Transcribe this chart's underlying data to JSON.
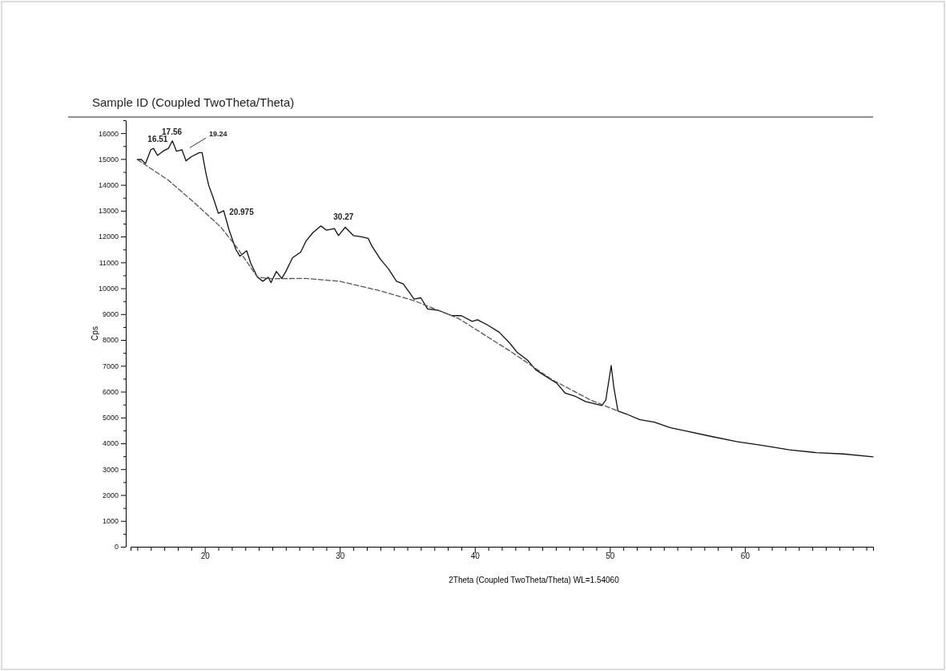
{
  "chart_data": {
    "type": "line",
    "title": "Sample ID (Coupled TwoTheta/Theta)",
    "xlabel": "2Theta (Coupled TwoTheta/Theta) WL=1.54060",
    "ylabel": "Cps",
    "xlim": [
      14.5,
      69.5
    ],
    "ylim": [
      0,
      16500
    ],
    "xticks": [
      {
        "value": 15,
        "label": null
      },
      {
        "value": 16,
        "label": null
      },
      {
        "value": 17,
        "label": null
      },
      {
        "value": 18,
        "label": null
      },
      {
        "value": 19,
        "label": null
      },
      20,
      {
        "value": 21,
        "label": null
      },
      {
        "value": 22,
        "label": null
      },
      {
        "value": 23,
        "label": null
      },
      {
        "value": 24,
        "label": null
      },
      {
        "value": 25,
        "label": null
      },
      {
        "value": 26,
        "label": null
      },
      {
        "value": 27,
        "label": null
      },
      {
        "value": 28,
        "label": null
      },
      {
        "value": 29,
        "label": null
      },
      30,
      {
        "value": 31,
        "label": null
      },
      {
        "value": 32,
        "label": null
      },
      {
        "value": 33,
        "label": null
      },
      {
        "value": 34,
        "label": null
      },
      {
        "value": 35,
        "label": null
      },
      {
        "value": 36,
        "label": null
      },
      {
        "value": 37,
        "label": null
      },
      {
        "value": 38,
        "label": null
      },
      {
        "value": 39,
        "label": null
      },
      40,
      {
        "value": 41,
        "label": null
      },
      {
        "value": 42,
        "label": null
      },
      {
        "value": 43,
        "label": null
      },
      {
        "value": 44,
        "label": null
      },
      {
        "value": 45,
        "label": null
      },
      {
        "value": 46,
        "label": null
      },
      {
        "value": 47,
        "label": null
      },
      {
        "value": 48,
        "label": null
      },
      {
        "value": 49,
        "label": null
      },
      50,
      {
        "value": 51,
        "label": null
      },
      {
        "value": 52,
        "label": null
      },
      {
        "value": 53,
        "label": null
      },
      {
        "value": 54,
        "label": null
      },
      {
        "value": 55,
        "label": null
      },
      {
        "value": 56,
        "label": null
      },
      {
        "value": 57,
        "label": null
      },
      {
        "value": 58,
        "label": null
      },
      {
        "value": 59,
        "label": null
      },
      60,
      {
        "value": 61,
        "label": null
      },
      {
        "value": 62,
        "label": null
      },
      {
        "value": 63,
        "label": null
      },
      {
        "value": 64,
        "label": null
      },
      {
        "value": 65,
        "label": null
      },
      {
        "value": 66,
        "label": null
      },
      {
        "value": 67,
        "label": null
      },
      {
        "value": 68,
        "label": null
      },
      {
        "value": 69,
        "label": null
      }
    ],
    "yticks": [
      0,
      {
        "value": 500,
        "label": null
      },
      1000,
      {
        "value": 1500,
        "label": null
      },
      2000,
      {
        "value": 2500,
        "label": null
      },
      3000,
      {
        "value": 3500,
        "label": null
      },
      4000,
      {
        "value": 4500,
        "label": null
      },
      5000,
      {
        "value": 5500,
        "label": null
      },
      6000,
      {
        "value": 6500,
        "label": null
      },
      7000,
      {
        "value": 7500,
        "label": null
      },
      8000,
      {
        "value": 8500,
        "label": null
      },
      9000,
      {
        "value": 9500,
        "label": null
      },
      10000,
      {
        "value": 10500,
        "label": null
      },
      11000,
      {
        "value": 11500,
        "label": null
      },
      12000,
      {
        "value": 12500,
        "label": null
      },
      13000,
      {
        "value": 13500,
        "label": null
      },
      14000,
      {
        "value": 14500,
        "label": null
      },
      15000,
      {
        "value": 15500,
        "label": null
      },
      16000,
      {
        "value": 16500,
        "label": null
      }
    ],
    "grid": false,
    "marker": "none",
    "series": [
      {
        "color": "#111111",
        "line_style": "solid",
        "x": [
          15.0,
          15.3,
          15.6,
          16.0,
          16.2,
          16.5,
          16.9,
          17.3,
          17.6,
          17.9,
          18.3,
          18.5,
          18.6,
          19.0,
          19.6,
          19.8,
          20.1,
          20.3,
          20.6,
          21.0,
          21.4,
          21.8,
          22.3,
          22.6,
          23.1,
          23.4,
          23.9,
          24.3,
          24.7,
          24.9,
          25.3,
          25.7,
          26.0,
          26.5,
          27.1,
          27.5,
          28.0,
          28.6,
          29.0,
          29.6,
          29.9,
          30.4,
          31.0,
          31.6,
          32.1,
          32.4,
          33.0,
          33.6,
          34.2,
          34.7,
          35.5,
          36.0,
          36.5,
          37.3,
          38.3,
          39.0,
          39.8,
          40.2,
          41.0,
          41.8,
          42.6,
          43.1,
          43.9,
          44.5,
          45.3,
          46.1,
          46.7,
          47.4,
          48.2,
          49.4,
          49.7,
          50.1,
          50.3,
          50.6,
          51.2,
          52.2,
          53.3,
          54.5,
          55.5,
          57.4,
          59.4,
          61.4,
          63.3,
          65.3,
          67.3,
          69.5
        ],
        "values": [
          14980,
          14980,
          14820,
          15360,
          15410,
          15140,
          15300,
          15410,
          15700,
          15300,
          15360,
          15090,
          14930,
          15090,
          15250,
          15250,
          14400,
          13960,
          13540,
          12900,
          13000,
          12250,
          11500,
          11240,
          11450,
          10970,
          10430,
          10270,
          10430,
          10220,
          10650,
          10380,
          10650,
          11180,
          11400,
          11830,
          12150,
          12410,
          12250,
          12310,
          12040,
          12360,
          12040,
          11990,
          11930,
          11610,
          11130,
          10750,
          10270,
          10170,
          9580,
          9630,
          9200,
          9150,
          8940,
          8940,
          8720,
          8780,
          8560,
          8300,
          7870,
          7540,
          7220,
          6850,
          6580,
          6310,
          5940,
          5830,
          5620,
          5460,
          5670,
          7010,
          6150,
          5250,
          5140,
          4920,
          4820,
          4600,
          4490,
          4280,
          4070,
          3910,
          3750,
          3640,
          3590,
          3480
        ]
      },
      {
        "color": "#555555",
        "line_style": "dashed",
        "x": [
          15.0,
          17.3,
          19.2,
          21.2,
          22.4,
          23.9,
          24.9,
          27.5,
          30.0,
          33.0,
          35.5,
          38.8,
          42.7,
          45.7,
          48.6,
          50.6
        ],
        "values": [
          14980,
          14180,
          13320,
          12360,
          11560,
          10430,
          10370,
          10380,
          10270,
          9900,
          9520,
          8830,
          7540,
          6470,
          5670,
          5250
        ]
      }
    ],
    "annotations": [
      {
        "text": "16.51",
        "x": 16.51,
        "y": 15410
      },
      {
        "text": "17.56",
        "x": 17.56,
        "y": 15700
      },
      {
        "text": "19.24",
        "x": 19.24,
        "y": 15250
      },
      {
        "text": "20.975",
        "x": 20.975,
        "y": 12900
      },
      {
        "text": "30.27",
        "x": 30.27,
        "y": 12410
      }
    ]
  }
}
